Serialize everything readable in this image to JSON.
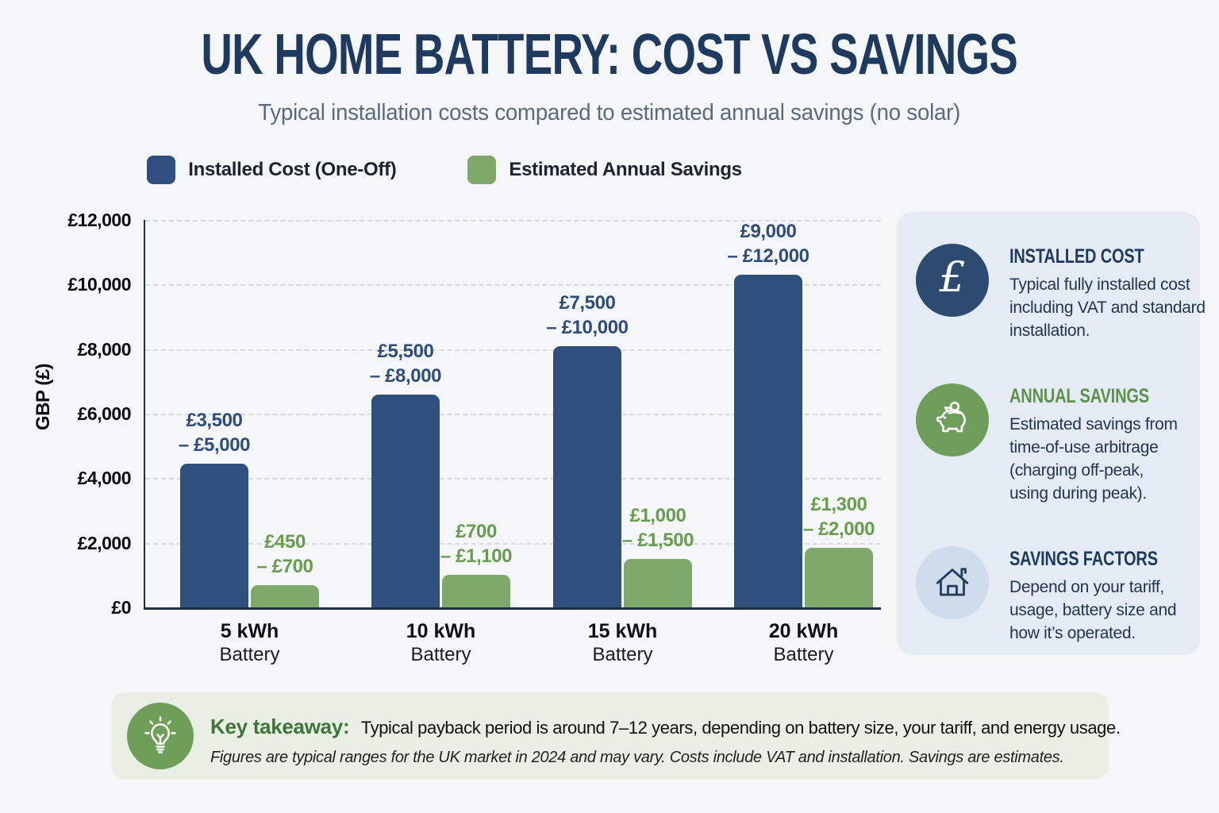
{
  "page": {
    "title": "UK HOME BATTERY: COST VS SAVINGS",
    "subtitle": "Typical installation costs compared to estimated annual savings (no solar)"
  },
  "legend": [
    {
      "label": "Installed Cost (One-Off)",
      "color": "#2f4f7d"
    },
    {
      "label": "Estimated Annual Savings",
      "color": "#7fa96a"
    }
  ],
  "chart_data": {
    "type": "bar",
    "title": "UK HOME BATTERY: COST VS SAVINGS",
    "subtitle": "Typical installation costs compared to estimated annual savings (no solar)",
    "ylabel": "GBP (£)",
    "ylim": [
      0,
      12000
    ],
    "ytick_values": [
      12000,
      10000,
      8000,
      6000,
      4000,
      2000,
      0
    ],
    "ytick_labels": [
      "£12,000",
      "£10,000",
      "£8,000",
      "£6,000",
      "£4,000",
      "£2,000",
      "£0"
    ],
    "grid": "horizontal-dashed",
    "legend_position": "top",
    "categories": [
      "5 kWh",
      "10 kWh",
      "15 kWh",
      "20 kWh"
    ],
    "category_subline": "Battery",
    "series": [
      {
        "name": "Installed Cost (One-Off)",
        "key": "installed-cost",
        "color": "#2f4f7d",
        "label_color": "#2e4d7b",
        "range_low": [
          3500,
          5500,
          7500,
          9000
        ],
        "range_high": [
          5000,
          8000,
          10000,
          12000
        ],
        "range_labels": [
          "£3,500\n– £5,000",
          "£5,500\n– £8,000",
          "£7,500\n– £10,000",
          "£9,000\n– £12,000"
        ],
        "plotted_values": [
          4450,
          6600,
          8100,
          10300
        ]
      },
      {
        "name": "Estimated Annual Savings",
        "key": "annual-savings",
        "color": "#7fa96a",
        "label_color": "#689c50",
        "range_low": [
          450,
          700,
          1000,
          1300
        ],
        "range_high": [
          700,
          1100,
          1500,
          2000
        ],
        "range_labels": [
          "£450\n– £700",
          "£700\n– £1,100",
          "£1,000\n– £1,500",
          "£1,300\n– £2,000"
        ],
        "plotted_values": [
          680,
          1000,
          1500,
          1850
        ]
      }
    ]
  },
  "sidebar": {
    "cards": [
      {
        "icon": "pound-icon",
        "icon_bg": "#2d4a70",
        "title": "INSTALLED COST",
        "title_color": "#1e3a5e",
        "body": "Typical fully installed cost\nincluding VAT and standard\ninstallation."
      },
      {
        "icon": "piggy-bank-icon",
        "icon_bg": "#6f9e5c",
        "title": "ANNUAL SAVINGS",
        "title_color": "#5e9147",
        "body": "Estimated savings from\ntime-of-use arbitrage\n(charging off-peak,\nusing during peak)."
      },
      {
        "icon": "house-icon",
        "icon_bg": "#cfdcec",
        "title": "SAVINGS FACTORS",
        "title_color": "#1e3a5e",
        "body": "Depend on your tariff,\nusage, battery size and\nhow it’s operated."
      }
    ]
  },
  "footer": {
    "icon": "lightbulb-icon",
    "heading": "Key takeaway:",
    "text": "Typical payback period is around 7–12 years, depending on battery size, your tariff, and energy usage.",
    "note": "Figures are typical ranges for the UK market in 2024 and may vary. Costs include VAT and installation. Savings are estimates."
  }
}
